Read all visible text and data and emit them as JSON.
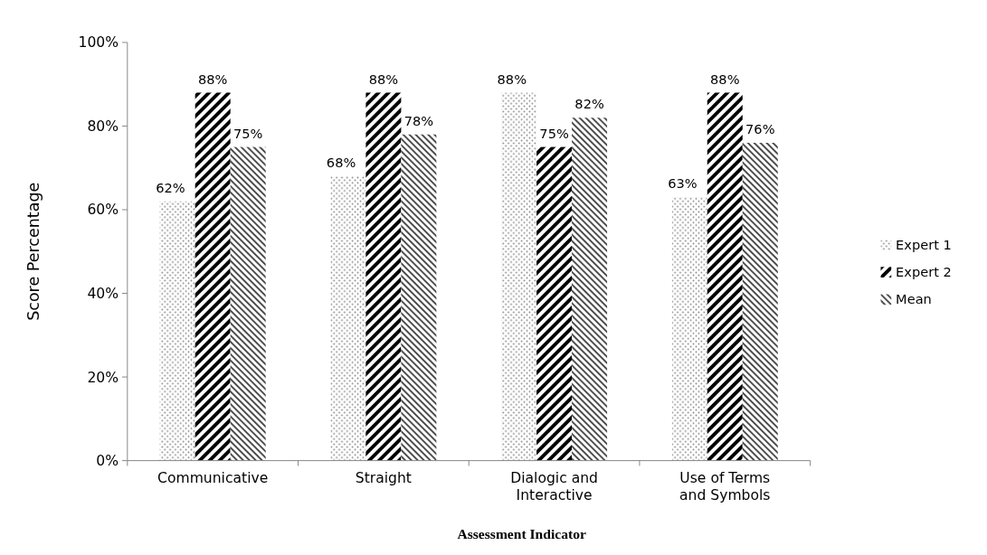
{
  "chart_data": {
    "type": "bar",
    "xlabel": "Assessment Indicator",
    "ylabel": "Score Percentage",
    "categories": [
      "Communicative",
      "Straight",
      "Dialogic and Interactive",
      "Use of Terms and Symbols"
    ],
    "series": [
      {
        "name": "Expert 1",
        "color": "#808080",
        "values": [
          62,
          68,
          88,
          63
        ],
        "value_labels": [
          "62%",
          "68%",
          "88%",
          "63%"
        ]
      },
      {
        "name": "Expert 2",
        "color": "#000000",
        "values": [
          88,
          88,
          75,
          88
        ],
        "value_labels": [
          "88%",
          "88%",
          "75%",
          "88%"
        ]
      },
      {
        "name": "Mean",
        "color": "#4d4d4d",
        "values": [
          75,
          78,
          82,
          76
        ],
        "value_labels": [
          "75%",
          "78%",
          "82%",
          "76%"
        ]
      }
    ],
    "ylim": [
      0,
      100
    ],
    "yticks": [
      {
        "value": 0,
        "label": "0%"
      },
      {
        "value": 20,
        "label": "20%"
      },
      {
        "value": 40,
        "label": "40%"
      },
      {
        "value": 60,
        "label": "60%"
      },
      {
        "value": 80,
        "label": "80%"
      },
      {
        "value": 100,
        "label": "100%"
      }
    ],
    "grid": false,
    "legend": "right"
  }
}
